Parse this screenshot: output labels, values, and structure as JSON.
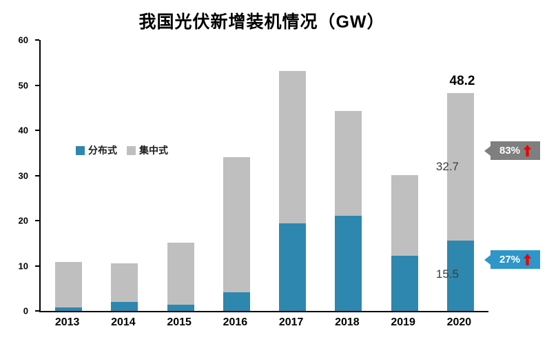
{
  "title": "我国光伏新增装机情况（GW）",
  "chart_data": {
    "type": "bar",
    "stacked": true,
    "title": "我国光伏新增装机情况（GW）",
    "categories": [
      "2013",
      "2014",
      "2015",
      "2016",
      "2017",
      "2018",
      "2019",
      "2020"
    ],
    "series": [
      {
        "name": "分布式",
        "color": "#2E87AE",
        "values": [
          0.8,
          2.0,
          1.4,
          4.2,
          19.4,
          21.0,
          12.2,
          15.5
        ]
      },
      {
        "name": "集中式",
        "color": "#BFBFBF",
        "values": [
          10.1,
          8.6,
          13.7,
          29.9,
          33.7,
          23.3,
          17.9,
          32.7
        ]
      }
    ],
    "totals": [
      10.9,
      10.6,
      15.1,
      34.1,
      53.1,
      44.3,
      30.1,
      48.2
    ],
    "ylim": [
      0,
      60
    ],
    "yticks": [
      0,
      10,
      20,
      30,
      40,
      50,
      60
    ],
    "grid": false,
    "legend_position": "inside-left",
    "annotations": [
      {
        "text": "48.2",
        "target": "2020-total"
      },
      {
        "text": "32.7",
        "target": "2020-集中式"
      },
      {
        "text": "15.5",
        "target": "2020-分布式"
      }
    ]
  },
  "badges": [
    {
      "label": "83%",
      "color": "#7F7F7F",
      "arrow": "up",
      "arrow_color": "#EE0000"
    },
    {
      "label": "27%",
      "color": "#2E96C8",
      "arrow": "up",
      "arrow_color": "#EE0000"
    }
  ]
}
